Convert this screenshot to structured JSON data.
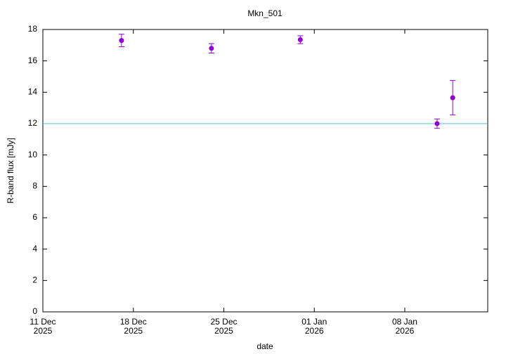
{
  "chart_data": {
    "type": "errorbar-scatter",
    "title": "Mkn_501",
    "x_label": "date",
    "y_label": "R-band flux [mJy]",
    "x": [
      "2025-12-17T02:00",
      "2025-12-24T01:00",
      "2025-12-30T22:00",
      "2026-01-10T12:00",
      "2026-01-11T17:00"
    ],
    "series": [
      {
        "name": "Mkn_501",
        "color": "#9400d3",
        "values": [
          17.3,
          16.8,
          17.35,
          12.0,
          13.65
        ],
        "errors": [
          0.4,
          0.3,
          0.25,
          0.3,
          1.1
        ]
      }
    ],
    "reference_line": {
      "value": 12,
      "color": "#56b4e9"
    },
    "xlim": [
      "2025-12-11T00:00",
      "2026-01-14T10:00"
    ],
    "xticks": [
      {
        "value": "2025-12-11T00:00",
        "label": [
          "11 Dec",
          "2025"
        ]
      },
      {
        "value": "2025-12-18T00:00",
        "label": [
          "18 Dec",
          "2025"
        ]
      },
      {
        "value": "2025-12-25T00:00",
        "label": [
          "25 Dec",
          "2025"
        ]
      },
      {
        "value": "2026-01-01T00:00",
        "label": [
          "01 Jan",
          "2026"
        ]
      },
      {
        "value": "2026-01-08T00:00",
        "label": [
          "08 Jan",
          "2026"
        ]
      }
    ],
    "ylim": [
      0,
      18
    ],
    "yticks": [
      0,
      2,
      4,
      6,
      8,
      10,
      12,
      14,
      16,
      18
    ],
    "grid": false
  }
}
